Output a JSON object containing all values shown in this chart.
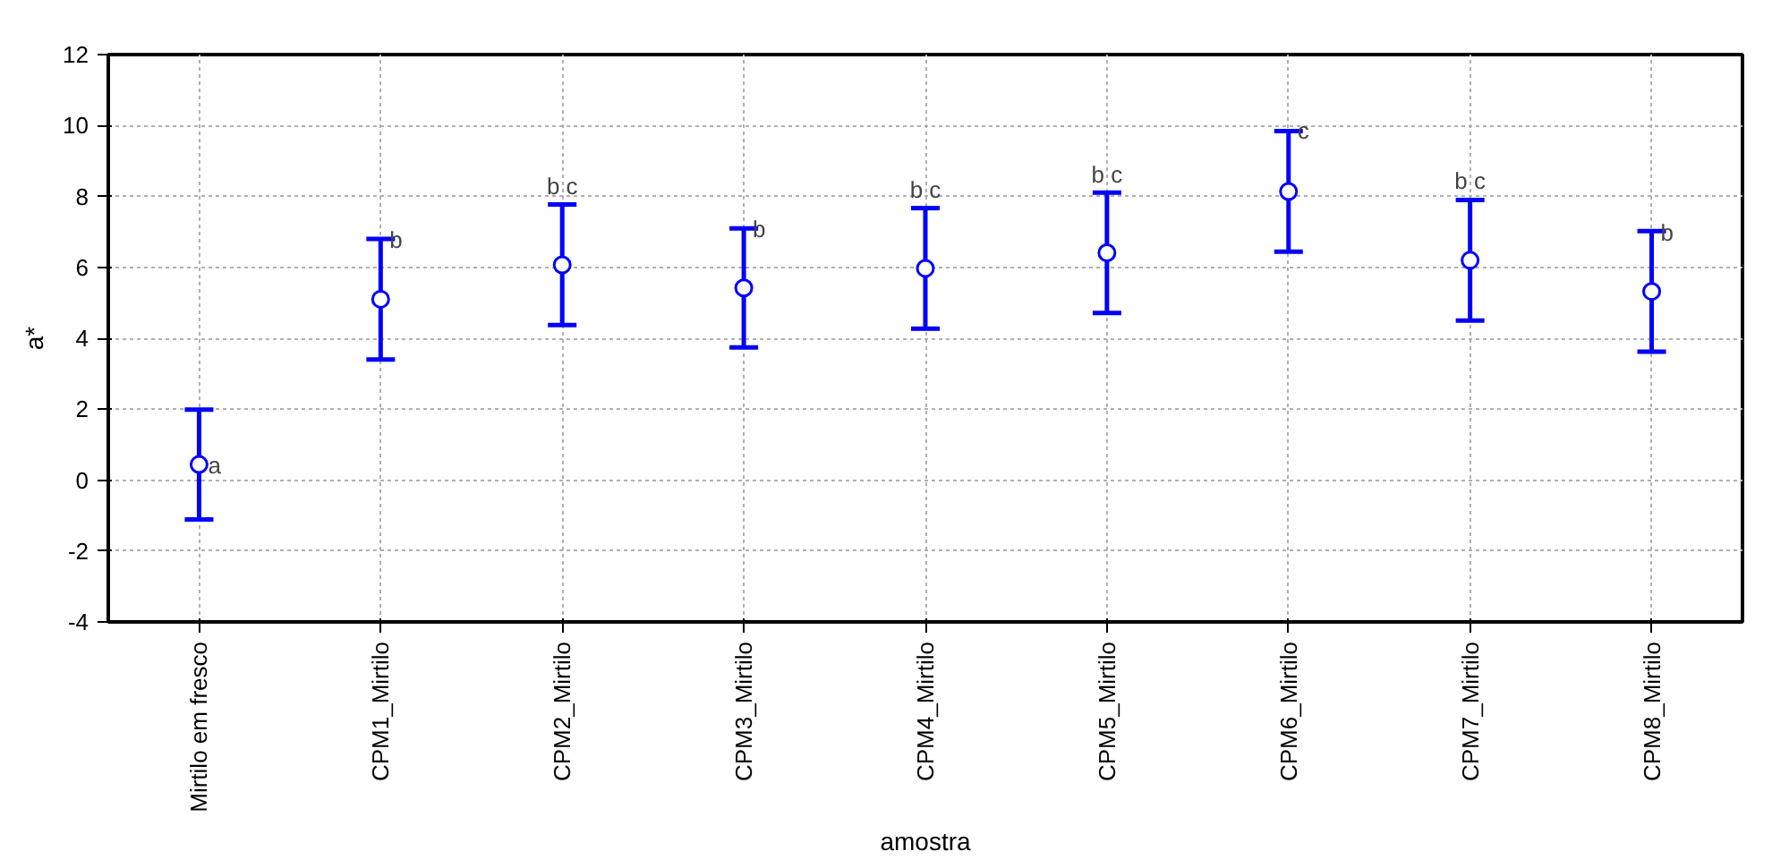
{
  "chart_data": {
    "type": "scatter",
    "xlabel": "amostra",
    "ylabel": "a*",
    "categories": [
      "Mirtilo em fresco",
      "CPM1_Mirtilo",
      "CPM2_Mirtilo",
      "CPM3_Mirtilo",
      "CPM4_Mirtilo",
      "CPM5_Mirtilo",
      "CPM6_Mirtilo",
      "CPM7_Mirtilo",
      "CPM8_Mirtilo"
    ],
    "series": [
      {
        "color": "#0000ff",
        "values": [
          0.44,
          5.1,
          6.07,
          5.42,
          5.97,
          6.41,
          8.14,
          6.2,
          5.32
        ],
        "errors": [
          1.55,
          1.7,
          1.7,
          1.68,
          1.7,
          1.7,
          1.7,
          1.7,
          1.7
        ]
      }
    ],
    "ylim": [
      -4,
      12
    ],
    "yticks": [
      -4,
      -2,
      0,
      2,
      4,
      6,
      8,
      10,
      12
    ],
    "grid": true,
    "marker": "circle",
    "annotations": [
      {
        "text": "a",
        "x": "Mirtilo em fresco",
        "y": 0.44
      },
      {
        "text": "b",
        "x": "CPM1_Mirtilo",
        "y": 6.8
      },
      {
        "text": "b c",
        "x": "CPM2_Mirtilo",
        "y": 7.77
      },
      {
        "text": "b",
        "x": "CPM3_Mirtilo",
        "y": 7.1
      },
      {
        "text": "b c",
        "x": "CPM4_Mirtilo",
        "y": 7.67
      },
      {
        "text": "b c",
        "x": "CPM5_Mirtilo",
        "y": 8.1
      },
      {
        "text": "c",
        "x": "CPM6_Mirtilo",
        "y": 9.87
      },
      {
        "text": "b c",
        "x": "CPM7_Mirtilo",
        "y": 7.9
      },
      {
        "text": "b",
        "x": "CPM8_Mirtilo",
        "y": 7.0
      }
    ]
  }
}
